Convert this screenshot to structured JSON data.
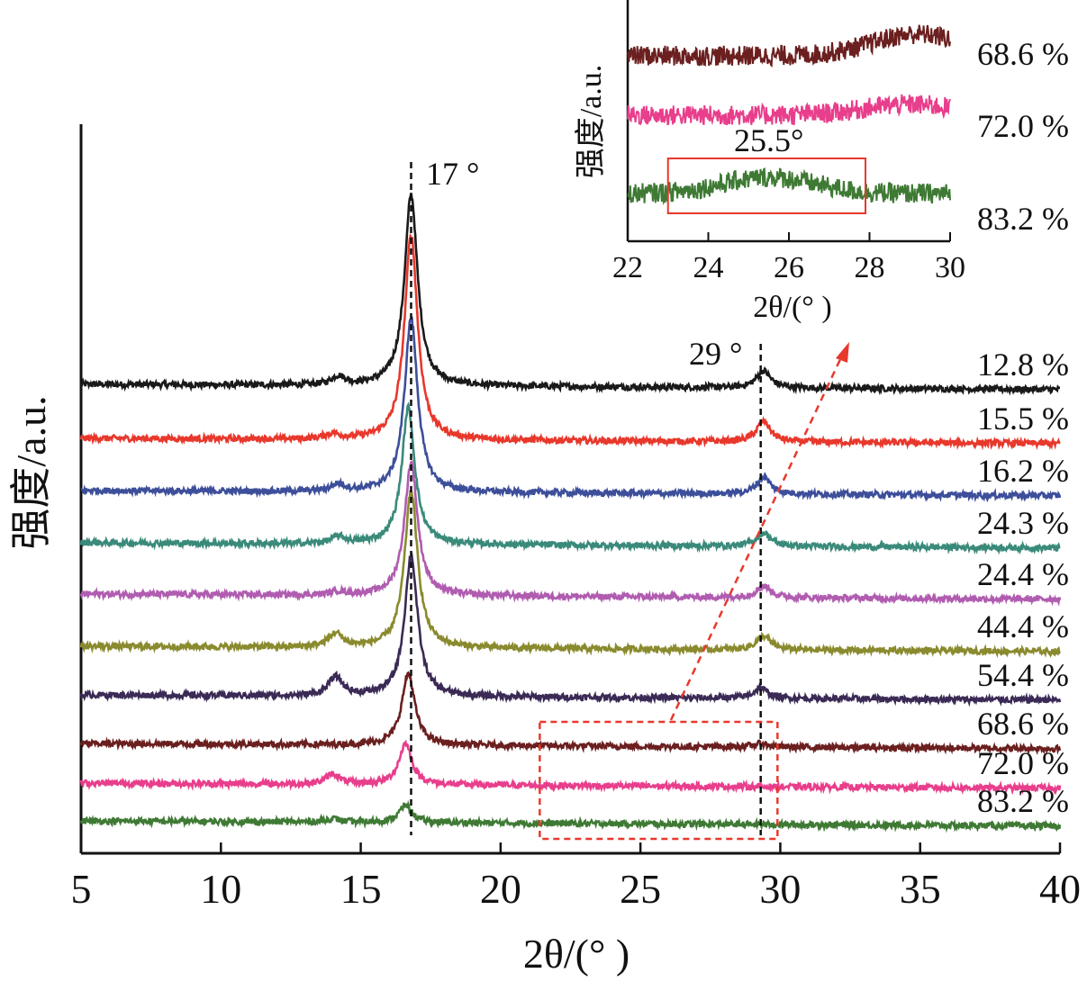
{
  "chart_data": [
    {
      "type": "line",
      "panel": "main",
      "xlabel": "2θ/(° )",
      "ylabel": "强度/a.u.",
      "xlim": [
        5,
        40
      ],
      "xticks": [
        5,
        10,
        15,
        20,
        25,
        30,
        35,
        40
      ],
      "y_ticks_shown": false,
      "grid": false,
      "series": [
        {
          "name": "12.8 %",
          "color": "#1a1a1a",
          "peaks": [
            {
              "x": 14.2,
              "height": 0.25
            },
            {
              "x": 16.8,
              "height": 5.6
            },
            {
              "x": 29.4,
              "height": 0.5
            }
          ]
        },
        {
          "name": "15.5 %",
          "color": "#e8382c",
          "peaks": [
            {
              "x": 14.0,
              "height": 0.15
            },
            {
              "x": 16.8,
              "height": 6.0
            },
            {
              "x": 29.4,
              "height": 0.6
            }
          ]
        },
        {
          "name": "16.2 %",
          "color": "#3d4f9a",
          "peaks": [
            {
              "x": 14.2,
              "height": 0.2
            },
            {
              "x": 16.8,
              "height": 5.1
            },
            {
              "x": 29.4,
              "height": 0.5
            }
          ]
        },
        {
          "name": "24.3 %",
          "color": "#3a8a7a",
          "peaks": [
            {
              "x": 14.2,
              "height": 0.2
            },
            {
              "x": 16.7,
              "height": 4.0
            },
            {
              "x": 29.4,
              "height": 0.4
            }
          ]
        },
        {
          "name": "24.4 %",
          "color": "#b05cb0",
          "peaks": [
            {
              "x": 14.2,
              "height": 0.1
            },
            {
              "x": 16.8,
              "height": 3.9
            },
            {
              "x": 29.4,
              "height": 0.35
            }
          ]
        },
        {
          "name": "44.4 %",
          "color": "#8a8a2e",
          "peaks": [
            {
              "x": 14.1,
              "height": 0.4
            },
            {
              "x": 16.8,
              "height": 4.6
            },
            {
              "x": 29.4,
              "height": 0.4
            }
          ]
        },
        {
          "name": "54.4 %",
          "color": "#3a2a55",
          "peaks": [
            {
              "x": 14.1,
              "height": 0.55
            },
            {
              "x": 16.8,
              "height": 4.1
            },
            {
              "x": 29.3,
              "height": 0.3
            }
          ]
        },
        {
          "name": "68.6 %",
          "color": "#6b1f1f",
          "peaks": [
            {
              "x": 16.7,
              "height": 2.1
            },
            {
              "x": 29.3,
              "height": 0.1
            }
          ]
        },
        {
          "name": "72.0 %",
          "color": "#e83e8c",
          "peaks": [
            {
              "x": 14.0,
              "height": 0.3
            },
            {
              "x": 16.6,
              "height": 1.2
            }
          ]
        },
        {
          "name": "83.2 %",
          "color": "#3f7a35",
          "peaks": [
            {
              "x": 14.0,
              "height": 0.1
            },
            {
              "x": 16.6,
              "height": 0.5
            }
          ]
        }
      ],
      "reference_lines": [
        {
          "x": 16.8,
          "label": "17 °"
        },
        {
          "x": 29.3,
          "label": "29 °"
        }
      ],
      "highlight_box": {
        "x_range": [
          21.4,
          29.9
        ],
        "style": "dashed",
        "color": "#e8382c",
        "arrow_to": "inset"
      }
    },
    {
      "type": "line",
      "panel": "inset",
      "xlabel": "2θ/(° )",
      "ylabel": "强度/a.u.",
      "xlim": [
        22,
        30
      ],
      "xticks": [
        22,
        24,
        26,
        28,
        30
      ],
      "series": [
        {
          "name": "68.6 %",
          "color": "#6b1f1f",
          "peaks": [
            {
              "x": 29.2,
              "height": 0.8
            }
          ]
        },
        {
          "name": "72.0 %",
          "color": "#e83e8c",
          "peaks": [
            {
              "x": 29.0,
              "height": 0.4
            }
          ]
        },
        {
          "name": "83.2 %",
          "color": "#3f7a35",
          "peaks": [
            {
              "x": 25.5,
              "height": 0.6
            }
          ]
        }
      ],
      "annotation": {
        "label": "25.5°",
        "x_range": [
          23.0,
          27.9
        ],
        "color": "#e8382c"
      }
    }
  ]
}
